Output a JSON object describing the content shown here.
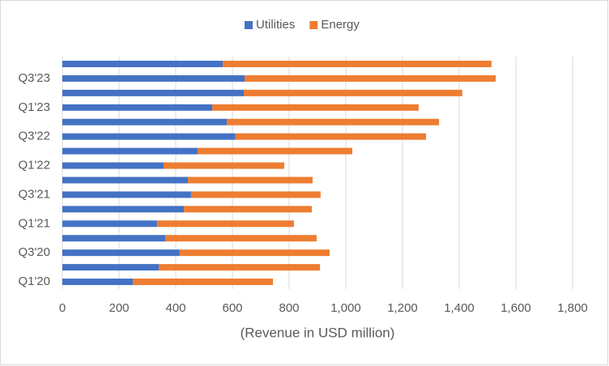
{
  "chart_data": {
    "type": "hbar_stacked",
    "categories": [
      "Q1'20",
      null,
      "Q3'20",
      null,
      "Q1'21",
      null,
      "Q3'21",
      null,
      "Q1'22",
      null,
      "Q3'22",
      null,
      "Q1'23",
      null,
      "Q3'23",
      null
    ],
    "series": [
      {
        "name": "Utilities",
        "color": "#4472c4",
        "values": [
          249,
          340,
          414,
          363,
          334,
          429,
          454,
          443,
          357,
          477,
          611,
          580,
          529,
          640,
          643,
          566
        ]
      },
      {
        "name": "Energy",
        "color": "#ed7d31",
        "values": [
          494,
          569,
          529,
          534,
          483,
          451,
          457,
          440,
          426,
          546,
          672,
          749,
          728,
          771,
          886,
          948
        ]
      }
    ],
    "xlabel": "(Revenue  in USD million)",
    "xlim": [
      0,
      1800
    ],
    "xticks": [
      0,
      200,
      400,
      600,
      800,
      {
        "value": 1000,
        "label": "1,000"
      },
      {
        "value": 1200,
        "label": "1,200"
      },
      {
        "value": 1400,
        "label": "1,400"
      },
      {
        "value": 1600,
        "label": "1,600"
      },
      {
        "value": 1800,
        "label": "1,800"
      }
    ],
    "grid": true,
    "legend": "top"
  }
}
